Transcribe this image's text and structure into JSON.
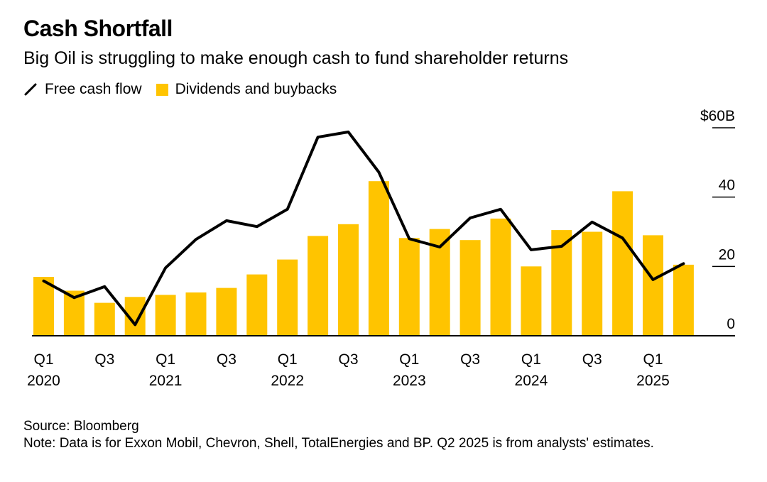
{
  "title": "Cash Shortfall",
  "subtitle": "Big Oil is struggling to make enough cash to fund shareholder returns",
  "colors": {
    "bar": "#FFC400",
    "line": "#000000",
    "axis": "#000000"
  },
  "chart_data": {
    "type": "bar",
    "categories": [
      "Q1 2020",
      "Q2 2020",
      "Q3 2020",
      "Q4 2020",
      "Q1 2021",
      "Q2 2021",
      "Q3 2021",
      "Q4 2021",
      "Q1 2022",
      "Q2 2022",
      "Q3 2022",
      "Q4 2022",
      "Q1 2023",
      "Q2 2023",
      "Q3 2023",
      "Q4 2023",
      "Q1 2024",
      "Q2 2024",
      "Q3 2024",
      "Q4 2024",
      "Q1 2025",
      "Q2 2025"
    ],
    "series": [
      {
        "name": "Dividends and buybacks",
        "type": "bar",
        "values": [
          17,
          13,
          9.5,
          11.2,
          11.8,
          12.5,
          13.8,
          17.7,
          22,
          28.8,
          32.2,
          44.6,
          28.2,
          30.8,
          27.6,
          33.8,
          20,
          30.5,
          30,
          41.7,
          29,
          20.5
        ]
      },
      {
        "name": "Free cash flow",
        "type": "line",
        "values": [
          15.8,
          11,
          14.2,
          3.2,
          19.6,
          27.8,
          33.2,
          31.5,
          36.5,
          57.3,
          58.8,
          47.2,
          28,
          25.6,
          34,
          36.5,
          24.8,
          25.8,
          32.8,
          28.2,
          16.2,
          20.8
        ]
      }
    ],
    "x_tick_labels": [
      {
        "quarter": "Q1",
        "year": "2020"
      },
      {
        "quarter": "Q3",
        "year": ""
      },
      {
        "quarter": "Q1",
        "year": "2021"
      },
      {
        "quarter": "Q3",
        "year": ""
      },
      {
        "quarter": "Q1",
        "year": "2022"
      },
      {
        "quarter": "Q3",
        "year": ""
      },
      {
        "quarter": "Q1",
        "year": "2023"
      },
      {
        "quarter": "Q3",
        "year": ""
      },
      {
        "quarter": "Q1",
        "year": "2024"
      },
      {
        "quarter": "Q3",
        "year": ""
      },
      {
        "quarter": "Q1",
        "year": "2025"
      }
    ],
    "y_ticks": [
      {
        "value": 0,
        "label": "0"
      },
      {
        "value": 20,
        "label": "20"
      },
      {
        "value": 40,
        "label": "40"
      },
      {
        "value": 60,
        "label": "$60B"
      }
    ],
    "ylim": [
      0,
      60
    ],
    "grid": false,
    "legend_position": "top-left"
  },
  "footer": {
    "source": "Source: Bloomberg",
    "note": "Note: Data is for Exxon Mobil, Chevron, Shell, TotalEnergies and BP. Q2 2025 is from analysts' estimates."
  }
}
